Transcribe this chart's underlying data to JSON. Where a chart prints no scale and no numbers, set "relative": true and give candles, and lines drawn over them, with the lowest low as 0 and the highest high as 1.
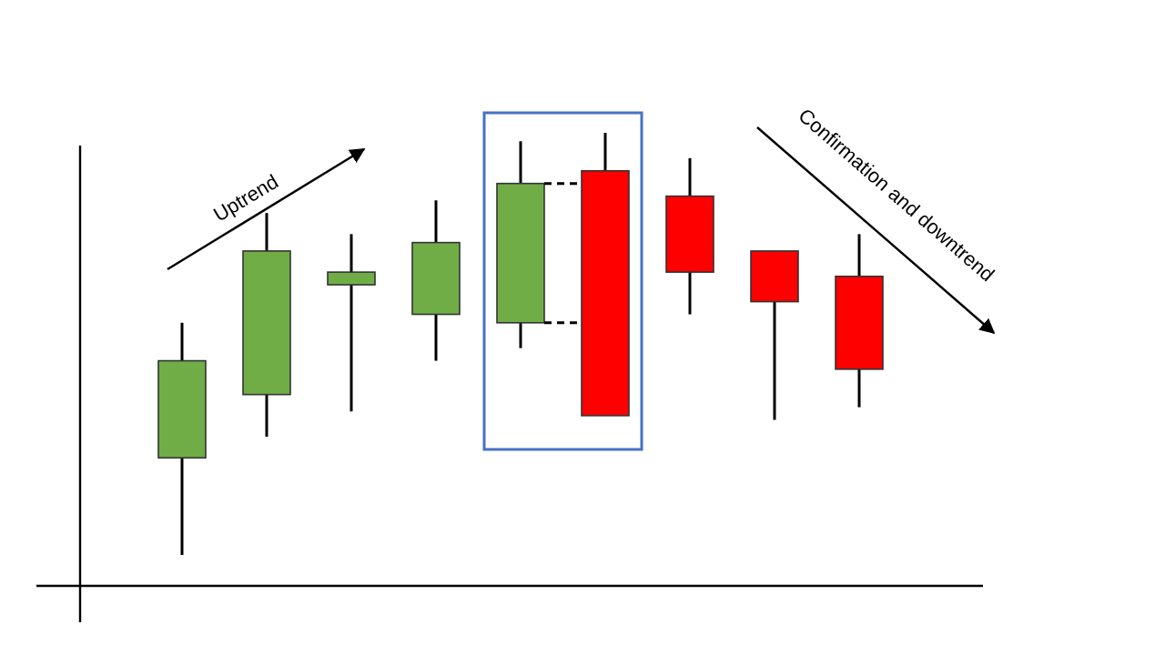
{
  "chart_data": {
    "type": "candlestick",
    "relative": true,
    "categories": [
      null,
      null,
      null,
      null,
      null,
      null,
      null,
      null,
      null
    ],
    "ohlc": [
      [
        0.23,
        0.55,
        0,
        0.46
      ],
      [
        0.38,
        0.81,
        0.28,
        0.72
      ],
      [
        0.64,
        0.76,
        0.34,
        0.67
      ],
      [
        0.57,
        0.84,
        0.46,
        0.74
      ],
      [
        0.55,
        0.98,
        0.49,
        0.88
      ],
      [
        0.91,
        1,
        0.33,
        0.33
      ],
      [
        0.85,
        0.94,
        0.57,
        0.67
      ],
      [
        0.72,
        0.72,
        0.32,
        0.6
      ],
      [
        0.66,
        0.76,
        0.35,
        0.44
      ]
    ],
    "colors": [
      "#70ad47",
      "#70ad47",
      "#70ad47",
      "#70ad47",
      "#70ad47",
      "#ff0000",
      "#ff0000",
      "#ff0000",
      "#ff0000"
    ],
    "annotations": [
      "Uptrend",
      "Confirmation and downtrend"
    ]
  }
}
